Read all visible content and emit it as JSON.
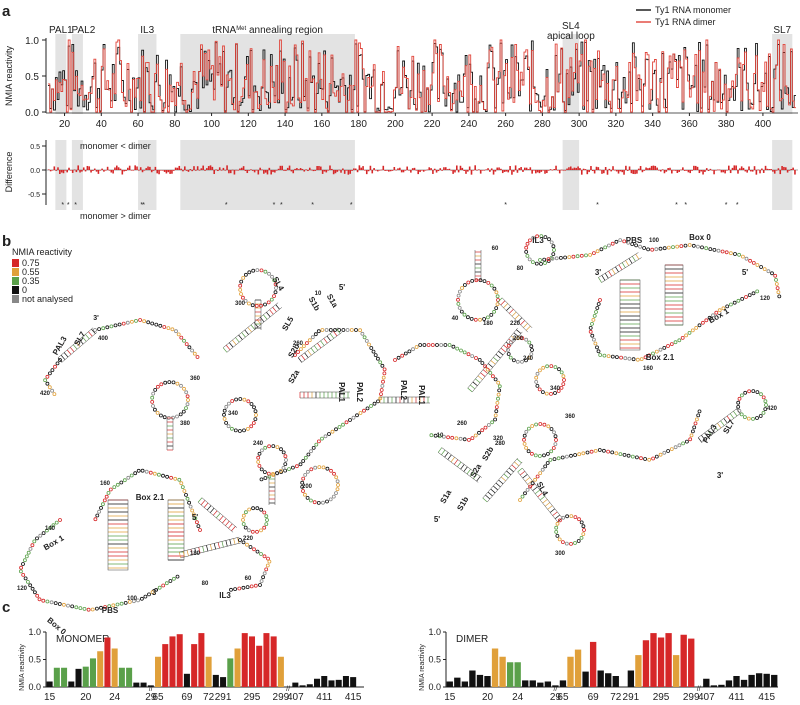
{
  "panels": {
    "a": "a",
    "b": "b",
    "c": "c"
  },
  "panel_a": {
    "ylabel_top": "NMIA reactivity",
    "ylabel_bottom": "Difference",
    "y_ticks": [
      "1.0",
      "0.5",
      "0.0"
    ],
    "diff_ticks": [
      "0.5",
      "0.0",
      "-0.5"
    ],
    "x_ticks": [
      "20",
      "40",
      "60",
      "80",
      "100",
      "120",
      "140",
      "160",
      "180",
      "200",
      "220",
      "240",
      "260",
      "280",
      "300",
      "320",
      "340",
      "360",
      "380",
      "400"
    ],
    "legend": {
      "monomer": "Ty1 RNA monomer",
      "dimer": "Ty1 RNA dimer",
      "monomer_color": "#111111",
      "dimer_color": "#e0443a"
    },
    "regions": [
      {
        "label": "PAL1",
        "start": 15,
        "end": 21
      },
      {
        "label": "PAL2",
        "start": 24,
        "end": 30
      },
      {
        "label": "IL3",
        "start": 60,
        "end": 70
      },
      {
        "label": "tRNA",
        "sup": "Met",
        "label2": "annealing region",
        "start": 83,
        "end": 178
      },
      {
        "label": "SL4",
        "label2": "apical loop",
        "start": 291,
        "end": 300
      },
      {
        "label": "SL7",
        "start": 405,
        "end": 416
      }
    ],
    "diff_notes": {
      "up": "monomer < dimer",
      "down": "monomer > dimer"
    },
    "significance_mark": "*"
  },
  "panel_b": {
    "legend_title": "NMIA reactivity",
    "legend_items": [
      {
        "label": "0.75",
        "color": "#d62728"
      },
      {
        "label": "0.55",
        "color": "#e0a03a"
      },
      {
        "label": "0.35",
        "color": "#5aa04a"
      },
      {
        "label": "0",
        "color": "#111111"
      },
      {
        "label": "not analysed",
        "color": "#888888"
      }
    ],
    "left_labels": [
      "3'",
      "PAL3",
      "SL7",
      "400",
      "420",
      "300",
      "SL4",
      "340",
      "380",
      "360",
      "SL5",
      "S2b",
      "S2a",
      "S1b",
      "S1a",
      "5'",
      "10",
      "260",
      "240",
      "220",
      "200",
      "160",
      "Box 2.1",
      "140",
      "Box 1",
      "120",
      "Box 0",
      "PBS",
      "100",
      "3'",
      "5'",
      "180",
      "60",
      "IL3",
      "80",
      "PAL1",
      "PAL2",
      "SL5",
      "280"
    ],
    "right_labels": [
      "IL3",
      "80",
      "60",
      "PBS",
      "100",
      "Box 0",
      "3'",
      "5'",
      "120",
      "40",
      "180",
      "220",
      "200",
      "240",
      "280",
      "PAL2",
      "PAL1",
      "10",
      "260",
      "Box 1",
      "Box 2.1",
      "160",
      "5'",
      "S1a",
      "S1b",
      "S2a",
      "S2b",
      "320",
      "340",
      "360",
      "SL4",
      "300",
      "PAL3",
      "SL7",
      "420",
      "3'"
    ]
  },
  "chart_data": [
    {
      "type": "bar",
      "title": "MONOMER",
      "ylabel": "NMIA reactivity",
      "y_ticks": [
        "1.0",
        "0.5",
        "0.0"
      ],
      "ylim": [
        0,
        1.0
      ],
      "x_ticks": [
        "15",
        "20",
        "24",
        "29",
        "65",
        "69",
        "72",
        "291",
        "295",
        "299",
        "407",
        "411",
        "415"
      ],
      "categories": [
        "15",
        "16",
        "17",
        "18",
        "19",
        "20",
        "21",
        "22",
        "23",
        "24",
        "25",
        "26",
        "27",
        "28",
        "29",
        "65",
        "66",
        "67",
        "68",
        "69",
        "70",
        "71",
        "72",
        "73",
        "291",
        "292",
        "293",
        "294",
        "295",
        "296",
        "297",
        "298",
        "299",
        "300",
        "407",
        "408",
        "409",
        "410",
        "411",
        "412",
        "413",
        "414",
        "415",
        "416"
      ],
      "values": [
        0.1,
        0.35,
        0.35,
        0.1,
        0.33,
        0.37,
        0.52,
        0.65,
        0.9,
        0.7,
        0.35,
        0.35,
        0.08,
        0.08,
        0.03,
        0.55,
        0.78,
        0.92,
        0.96,
        0.24,
        0.78,
        0.98,
        0.55,
        0.22,
        0.18,
        0.52,
        0.7,
        0.98,
        0.92,
        0.75,
        0.98,
        0.92,
        0.55,
        0.0,
        0.08,
        0.03,
        0.05,
        0.15,
        0.2,
        0.12,
        0.13,
        0.2,
        0.18,
        0.0
      ]
    },
    {
      "type": "bar",
      "title": "DIMER",
      "ylabel": "NMIA reactivity",
      "y_ticks": [
        "1.0",
        "0.5",
        "0.0"
      ],
      "ylim": [
        0,
        1.0
      ],
      "x_ticks": [
        "15",
        "20",
        "24",
        "29",
        "65",
        "69",
        "72",
        "291",
        "295",
        "299",
        "407",
        "411",
        "415"
      ],
      "categories": [
        "15",
        "16",
        "17",
        "18",
        "19",
        "20",
        "21",
        "22",
        "23",
        "24",
        "25",
        "26",
        "27",
        "28",
        "29",
        "65",
        "66",
        "67",
        "68",
        "69",
        "70",
        "71",
        "72",
        "73",
        "291",
        "292",
        "293",
        "294",
        "295",
        "296",
        "297",
        "298",
        "299",
        "300",
        "407",
        "408",
        "409",
        "410",
        "411",
        "412",
        "413",
        "414",
        "415",
        "416"
      ],
      "values": [
        0.1,
        0.17,
        0.1,
        0.3,
        0.22,
        0.2,
        0.7,
        0.55,
        0.45,
        0.45,
        0.12,
        0.12,
        0.08,
        0.1,
        0.03,
        0.12,
        0.55,
        0.68,
        0.28,
        0.82,
        0.3,
        0.25,
        0.2,
        0.0,
        0.3,
        0.58,
        0.85,
        0.98,
        0.9,
        0.98,
        0.58,
        0.95,
        0.88,
        0.0,
        0.15,
        0.03,
        0.04,
        0.12,
        0.2,
        0.13,
        0.22,
        0.25,
        0.24,
        0.22
      ]
    }
  ]
}
